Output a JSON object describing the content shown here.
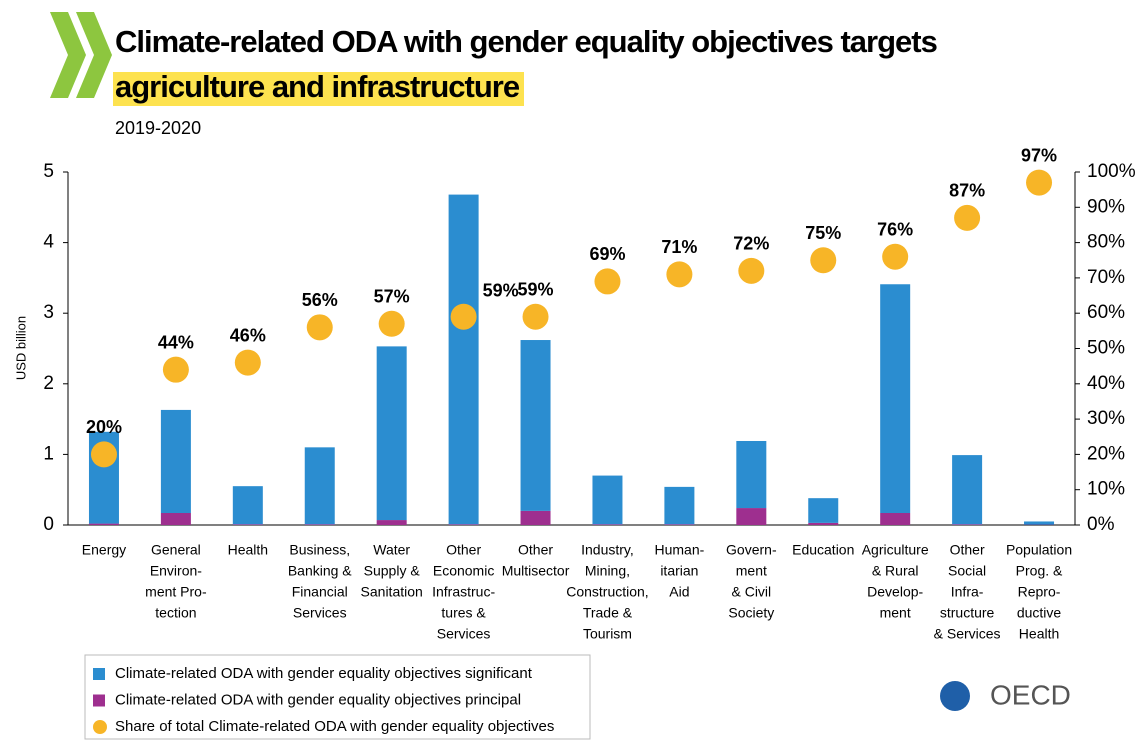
{
  "chart_data": {
    "type": "bar",
    "stacked": true,
    "title": [
      "Climate-related ODA with gender equality objectives targets",
      "agriculture and infrastructure"
    ],
    "subtitle": "2019-2020",
    "y_label": "USD billion",
    "logo_text": "OECD",
    "categories": [
      [
        "Energy"
      ],
      [
        "General",
        "Environ-",
        "ment Pro-",
        "tection"
      ],
      [
        "Health"
      ],
      [
        "Business,",
        "Banking &",
        "Financial",
        "Services"
      ],
      [
        "Water",
        "Supply &",
        "Sanitation"
      ],
      [
        "Other",
        "Economic",
        "Infrastruc-",
        "tures &",
        "Services"
      ],
      [
        "Other",
        "Multisector"
      ],
      [
        "Industry,",
        "Mining,",
        "Construction,",
        "Trade &",
        "Tourism"
      ],
      [
        "Human-",
        "itarian",
        "Aid"
      ],
      [
        "Govern-",
        "ment",
        "& Civil",
        "Society"
      ],
      [
        "Education"
      ],
      [
        "Agriculture",
        "& Rural",
        "Develop-",
        "ment"
      ],
      [
        "Other",
        "Social",
        "Infra-",
        "structure",
        "& Services"
      ],
      [
        "Population",
        "Prog. &",
        "Repro-",
        "ductive",
        "Health"
      ]
    ],
    "series": [
      {
        "name": "Climate-related ODA with gender equality objectives significant",
        "color": "#2b8dd0",
        "values": [
          1.3,
          1.46,
          0.54,
          1.09,
          2.46,
          4.67,
          2.42,
          0.69,
          0.53,
          0.95,
          0.35,
          3.24,
          0.98,
          0.045
        ]
      },
      {
        "name": "Climate-related ODA with gender equality objectives principal",
        "color": "#9e2f8f",
        "values": [
          0.02,
          0.17,
          0.01,
          0.01,
          0.07,
          0.01,
          0.2,
          0.01,
          0.01,
          0.24,
          0.03,
          0.17,
          0.01,
          0.005
        ]
      },
      {
        "name": "Share of total Climate-related ODA with gender equality objectives",
        "color": "#f7b527",
        "type": "scatter",
        "axis": "y2",
        "values": [
          20,
          44,
          46,
          56,
          57,
          59,
          59,
          69,
          71,
          72,
          75,
          76,
          87,
          97
        ],
        "value_labels": [
          "20%",
          "44%",
          "46%",
          "56%",
          "57%",
          "59%",
          "59%",
          "69%",
          "71%",
          "72%",
          "75%",
          "76%",
          "87%",
          "97%"
        ]
      }
    ],
    "ylim": [
      0,
      5
    ],
    "yticks": [
      0,
      1,
      2,
      3,
      4,
      5
    ],
    "y2lim": [
      0,
      100
    ],
    "y2ticks": [
      {
        "value": 0,
        "label": "0%"
      },
      {
        "value": 10,
        "label": "10%"
      },
      {
        "value": 20,
        "label": "20%"
      },
      {
        "value": 30,
        "label": "30%"
      },
      {
        "value": 40,
        "label": "40%"
      },
      {
        "value": 50,
        "label": "50%"
      },
      {
        "value": 60,
        "label": "60%"
      },
      {
        "value": 70,
        "label": "70%"
      },
      {
        "value": 80,
        "label": "80%"
      },
      {
        "value": 90,
        "label": "90%"
      },
      {
        "value": 100,
        "label": "100%"
      }
    ],
    "grid": false,
    "legend": "bottom-left"
  }
}
